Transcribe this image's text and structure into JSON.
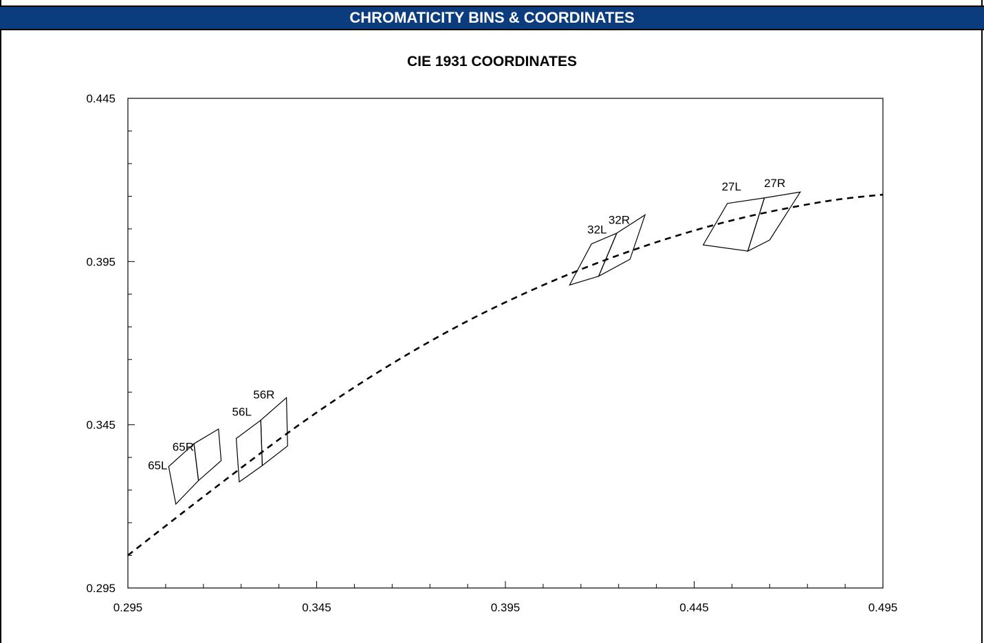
{
  "header": {
    "title": "CHROMATICITY BINS & COORDINATES"
  },
  "chart_data": {
    "type": "scatter",
    "title": "CIE 1931 COORDINATES",
    "xlabel": "",
    "ylabel": "",
    "xlim": [
      0.295,
      0.495
    ],
    "ylim": [
      0.295,
      0.445
    ],
    "x_ticks": [
      "0.295",
      "0.345",
      "0.395",
      "0.445",
      "0.495"
    ],
    "y_ticks": [
      "0.445",
      "0.395",
      "0.345",
      "0.295"
    ],
    "curve": {
      "style": "dashed",
      "points": [
        [
          0.295,
          0.305
        ],
        [
          0.31,
          0.3185
        ],
        [
          0.325,
          0.3318
        ],
        [
          0.34,
          0.3447
        ],
        [
          0.355,
          0.3565
        ],
        [
          0.37,
          0.3672
        ],
        [
          0.385,
          0.3768
        ],
        [
          0.4,
          0.3852
        ],
        [
          0.415,
          0.3926
        ],
        [
          0.43,
          0.399
        ],
        [
          0.445,
          0.4045
        ],
        [
          0.46,
          0.409
        ],
        [
          0.475,
          0.4125
        ],
        [
          0.485,
          0.4143
        ],
        [
          0.495,
          0.4155
        ]
      ]
    },
    "bins": [
      {
        "name": "65L",
        "label_pos": [
          0.3003,
          0.3313
        ],
        "quad": [
          [
            0.3058,
            0.3322
          ],
          [
            0.3125,
            0.3392
          ],
          [
            0.3137,
            0.3279
          ],
          [
            0.3077,
            0.3207
          ]
        ]
      },
      {
        "name": "65R",
        "label_pos": [
          0.3068,
          0.337
        ],
        "quad": [
          [
            0.3125,
            0.3392
          ],
          [
            0.319,
            0.3437
          ],
          [
            0.3197,
            0.334
          ],
          [
            0.3137,
            0.3279
          ]
        ]
      },
      {
        "name": "56L",
        "label_pos": [
          0.3226,
          0.3478
        ],
        "quad": [
          [
            0.3237,
            0.3408
          ],
          [
            0.3302,
            0.3464
          ],
          [
            0.3306,
            0.3325
          ],
          [
            0.3245,
            0.3275
          ]
        ]
      },
      {
        "name": "56R",
        "label_pos": [
          0.3282,
          0.353
        ],
        "quad": [
          [
            0.3302,
            0.3464
          ],
          [
            0.337,
            0.3533
          ],
          [
            0.3373,
            0.3385
          ],
          [
            0.3306,
            0.3325
          ]
        ]
      },
      {
        "name": "32L",
        "label_pos": [
          0.4167,
          0.4036
        ],
        "quad": [
          [
            0.4178,
            0.4004
          ],
          [
            0.4245,
            0.4037
          ],
          [
            0.4197,
            0.3905
          ],
          [
            0.412,
            0.3878
          ]
        ]
      },
      {
        "name": "32R",
        "label_pos": [
          0.4223,
          0.4066
        ],
        "quad": [
          [
            0.4245,
            0.4037
          ],
          [
            0.432,
            0.4093
          ],
          [
            0.428,
            0.3957
          ],
          [
            0.4197,
            0.3905
          ]
        ]
      },
      {
        "name": "27L",
        "label_pos": [
          0.4523,
          0.4168
        ],
        "quad": [
          [
            0.4538,
            0.4128
          ],
          [
            0.4636,
            0.4145
          ],
          [
            0.4592,
            0.3982
          ],
          [
            0.4474,
            0.4001
          ]
        ]
      },
      {
        "name": "27R",
        "label_pos": [
          0.4635,
          0.4178
        ],
        "quad": [
          [
            0.4636,
            0.4145
          ],
          [
            0.4731,
            0.4163
          ],
          [
            0.465,
            0.4016
          ],
          [
            0.4592,
            0.3982
          ]
        ]
      }
    ],
    "grid": false
  }
}
